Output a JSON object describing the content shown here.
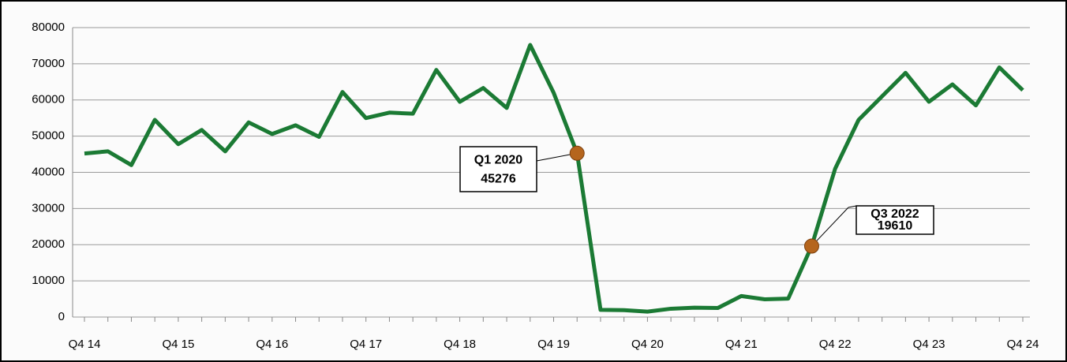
{
  "chart_data": {
    "type": "line",
    "categories": [
      "Q4 14",
      null,
      null,
      null,
      "Q4 15",
      null,
      null,
      null,
      "Q4 16",
      null,
      null,
      null,
      "Q4 17",
      null,
      null,
      null,
      "Q4 18",
      null,
      null,
      null,
      "Q4 19",
      null,
      null,
      null,
      "Q4 20",
      null,
      null,
      null,
      "Q4 21",
      null,
      null,
      null,
      "Q4 22",
      null,
      null,
      null,
      "Q4 23",
      null,
      null,
      null,
      "Q4 24"
    ],
    "series": [
      {
        "color": "#1b7a34",
        "values": [
          45200,
          45800,
          42000,
          54500,
          47800,
          51700,
          45800,
          53800,
          50600,
          53000,
          49800,
          62200,
          55000,
          56500,
          56200,
          68300,
          59500,
          63300,
          57800,
          75200,
          62000,
          45276,
          2000,
          1900,
          1500,
          2300,
          2600,
          2500,
          5800,
          4900,
          5100,
          19610,
          41000,
          54500,
          61000,
          67500,
          59500,
          64300,
          58500,
          69000,
          62700
        ]
      }
    ],
    "annotations": [
      {
        "text": "Q1 2020",
        "value": 45276
      },
      {
        "text": "Q3 2022",
        "value": 19610
      }
    ],
    "marker_color": "#b5651d",
    "ylim": [
      0,
      80000
    ],
    "yticks": [
      0,
      10000,
      20000,
      30000,
      40000,
      50000,
      60000,
      70000,
      80000
    ],
    "grid": true
  }
}
